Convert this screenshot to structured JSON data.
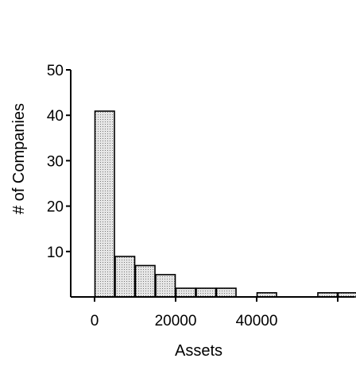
{
  "chart_data": {
    "type": "bar",
    "title": "",
    "xlabel": "Assets",
    "ylabel": "# of Companies",
    "xlim": [
      -5000,
      62000
    ],
    "ylim": [
      0,
      50
    ],
    "grid": false,
    "bin_width": 5000,
    "bins": [
      {
        "start": 0,
        "end": 5000,
        "count": 41
      },
      {
        "start": 5000,
        "end": 10000,
        "count": 9
      },
      {
        "start": 10000,
        "end": 15000,
        "count": 7
      },
      {
        "start": 15000,
        "end": 20000,
        "count": 5
      },
      {
        "start": 20000,
        "end": 25000,
        "count": 2
      },
      {
        "start": 25000,
        "end": 30000,
        "count": 2
      },
      {
        "start": 30000,
        "end": 35000,
        "count": 2
      },
      {
        "start": 35000,
        "end": 40000,
        "count": 0
      },
      {
        "start": 40000,
        "end": 45000,
        "count": 1
      },
      {
        "start": 45000,
        "end": 50000,
        "count": 0
      },
      {
        "start": 50000,
        "end": 55000,
        "count": 0
      },
      {
        "start": 55000,
        "end": 60000,
        "count": 1
      },
      {
        "start": 60000,
        "end": 65000,
        "count": 1
      }
    ],
    "x_ticks": [
      {
        "value": 0,
        "label": "0"
      },
      {
        "value": 20000,
        "label": "20000"
      },
      {
        "value": 40000,
        "label": "40000"
      },
      {
        "value": 60000,
        "label": ""
      }
    ],
    "y_ticks": [
      {
        "value": 10,
        "label": "10"
      },
      {
        "value": 20,
        "label": "20"
      },
      {
        "value": 30,
        "label": "30"
      },
      {
        "value": 40,
        "label": "40"
      },
      {
        "value": 50,
        "label": "50"
      }
    ],
    "bar_fill": "#e6e6e6",
    "bar_pattern_color": "#777777",
    "axis_color": "#000000"
  }
}
